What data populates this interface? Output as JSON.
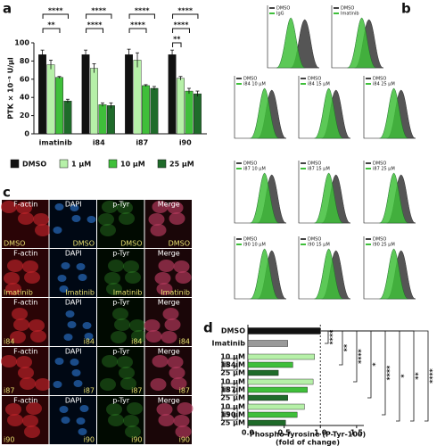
{
  "panel_labels": [
    "a",
    "b",
    "c",
    "d"
  ],
  "chart_data": [
    {
      "type": "bar",
      "ylabel": "PTK × 10⁻⁵ U/µl",
      "categories": [
        "imatinib",
        "i84",
        "i87",
        "i90"
      ],
      "series": [
        {
          "name": "DMSO",
          "color": "#111111",
          "values": [
            87,
            87,
            87,
            87
          ],
          "errors": [
            5,
            5,
            6,
            5
          ]
        },
        {
          "name": "1 µM",
          "color": "#b6f0a8",
          "values": [
            76,
            72,
            81,
            61
          ],
          "errors": [
            5,
            5,
            8,
            2
          ]
        },
        {
          "name": "10 µM",
          "color": "#3fbf3a",
          "values": [
            62,
            32,
            53,
            47
          ],
          "errors": [
            1,
            2,
            1,
            3
          ]
        },
        {
          "name": "25 µM",
          "color": "#1f6b2a",
          "values": [
            36,
            31,
            50,
            44
          ],
          "errors": [
            2,
            3,
            2,
            3
          ]
        }
      ],
      "ylim": [
        0,
        100
      ],
      "yticks": [
        0,
        20,
        40,
        60,
        80,
        100
      ],
      "significance": [
        [
          "****",
          "**"
        ],
        [
          "****",
          "****"
        ],
        [
          "****",
          "****"
        ],
        [
          "****",
          "****",
          "**"
        ]
      ]
    },
    {
      "type": "hbar",
      "categories": [
        "DMSO",
        "Imatinib",
        "10 µM",
        "15 µM",
        "25 µM",
        "10 µM",
        "15 µM",
        "25 µM",
        "10 µM",
        "15 µM",
        "25 µM"
      ],
      "values": [
        1.0,
        0.55,
        0.92,
        0.62,
        0.42,
        0.9,
        0.82,
        0.55,
        0.78,
        0.68,
        0.52
      ],
      "colors": [
        "#111111",
        "#9a9a9a",
        "#b6f0a8",
        "#3fbf3a",
        "#1f6b2a",
        "#b6f0a8",
        "#3fbf3a",
        "#1f6b2a",
        "#b6f0a8",
        "#3fbf3a",
        "#1f6b2a"
      ],
      "groups": [
        "i84",
        "i87",
        "i90"
      ],
      "xlabel": [
        "Phospho-Tyrosine (P-Tyr-100)",
        "(fold of change)"
      ],
      "xlim": [
        0,
        1.6
      ],
      "xticks": [
        {
          "value": 0,
          "label": "0.0"
        },
        0.5,
        {
          "value": 1,
          "label": "1.0"
        },
        1.5
      ],
      "reference_line": 1,
      "significance": [
        "****",
        "**",
        "****",
        "*",
        "****",
        "*",
        "**",
        "****"
      ]
    }
  ],
  "flow_cytometry": {
    "plots": [
      [
        "DMSO",
        "IgG"
      ],
      [
        "DMSO",
        "Imatinib"
      ],
      [
        "DMSO",
        "i84 10 µM"
      ],
      [
        "DMSO",
        "i84 15 µM"
      ],
      [
        "DMSO",
        "i84 25 µM"
      ],
      [
        "DMSO",
        "i87 10 µM"
      ],
      [
        "DMSO",
        "i87 15 µM"
      ],
      [
        "DMSO",
        "i87 25 µM"
      ],
      [
        "DMSO",
        "i90 10 µM"
      ],
      [
        "DMSO",
        "i90 15 µM"
      ],
      [
        "DMSO",
        "i90 25 µM"
      ]
    ]
  },
  "microscopy": {
    "channels": [
      "F-actin",
      "DAPI",
      "p-Tyr",
      "Merge"
    ],
    "rows": [
      "DMSO",
      "Imatinib",
      "i84",
      "i87",
      "i90"
    ]
  }
}
